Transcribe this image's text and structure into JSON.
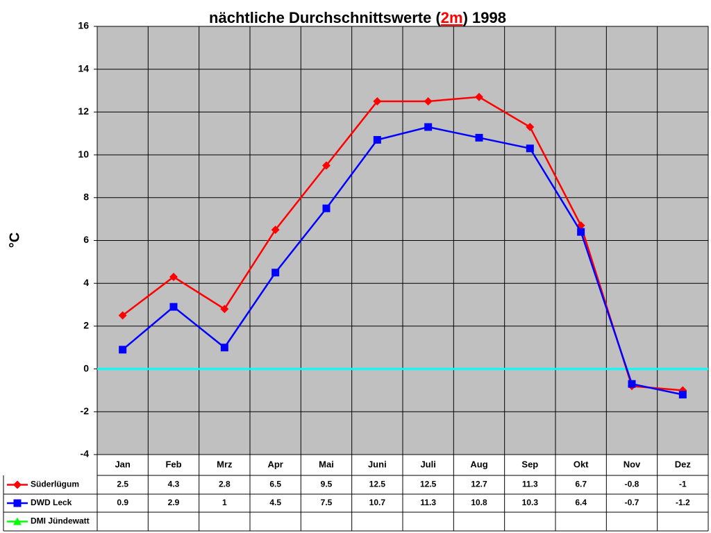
{
  "chart_data": {
    "type": "line",
    "title": [
      "nächtliche Durchschnittswerte (",
      "2m",
      ") 1998"
    ],
    "title_highlight_color": "#ff0000",
    "y_label": "°C",
    "categories": [
      "Jan",
      "Feb",
      "Mrz",
      "Apr",
      "Mai",
      "Juni",
      "Juli",
      "Aug",
      "Sep",
      "Okt",
      "Nov",
      "Dez"
    ],
    "series": [
      {
        "name": "Süderlügum",
        "color": "#ff0000",
        "marker": "diamond",
        "values": [
          2.5,
          4.3,
          2.8,
          6.5,
          9.5,
          12.5,
          12.5,
          12.7,
          11.3,
          6.7,
          -0.8,
          -1
        ]
      },
      {
        "name": "DWD Leck",
        "color": "#0000ff",
        "marker": "square",
        "values": [
          0.9,
          2.9,
          1,
          4.5,
          7.5,
          10.7,
          11.3,
          10.8,
          10.3,
          6.4,
          -0.7,
          -1.2
        ]
      },
      {
        "name": "DMI Jündewatt",
        "color": "#00ff00",
        "marker": "triangle",
        "values": [
          null,
          null,
          null,
          null,
          null,
          null,
          null,
          null,
          null,
          null,
          null,
          null
        ]
      }
    ],
    "ylim": [
      -4,
      16
    ],
    "yticks": [
      -4,
      -2,
      0,
      2,
      4,
      6,
      8,
      10,
      12,
      14,
      16
    ],
    "grid": true,
    "plot_background": "#c0c0c0",
    "zero_line_color": "#00ffff",
    "data_table": true
  }
}
